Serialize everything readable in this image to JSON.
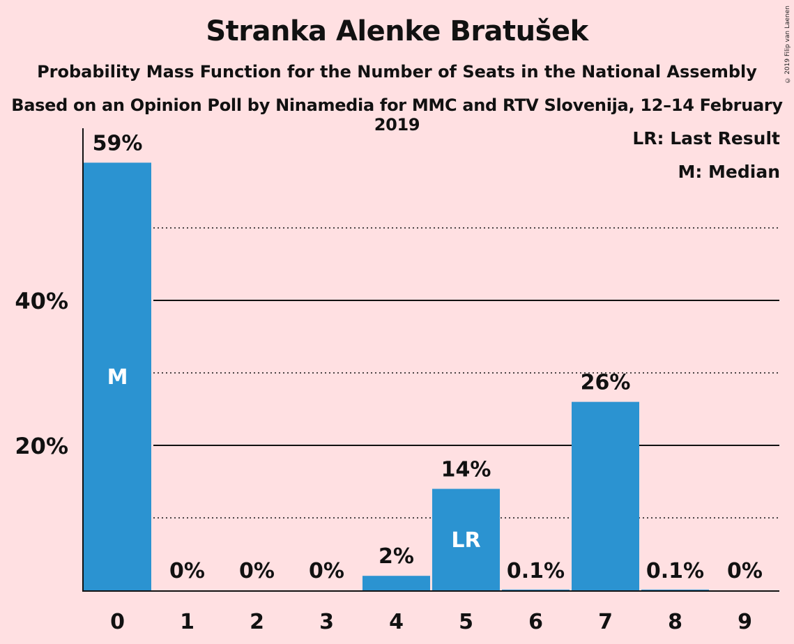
{
  "header": {
    "title": "Stranka Alenke Bratušek",
    "subtitle": "Probability Mass Function for the Number of Seats in the National Assembly",
    "subtitle2": "Based on an Opinion Poll by Ninamedia for MMC and RTV Slovenija, 12–14 February 2019",
    "copyright": "© 2019 Filip van Laenen"
  },
  "legend": {
    "last_result": "LR: Last Result",
    "median": "M: Median"
  },
  "colors": {
    "bar": "#2B93D1",
    "background": "#FFE0E2"
  },
  "chart_data": {
    "type": "bar",
    "categories": [
      "0",
      "1",
      "2",
      "3",
      "4",
      "5",
      "6",
      "7",
      "8",
      "9"
    ],
    "values": [
      59,
      0,
      0,
      0,
      2,
      14,
      0.1,
      26,
      0.1,
      0
    ],
    "labels": [
      "59%",
      "0%",
      "0%",
      "0%",
      "2%",
      "14%",
      "0.1%",
      "26%",
      "0.1%",
      "0%"
    ],
    "bar_markers": {
      "0": "M",
      "5": "LR"
    },
    "ylim": [
      0,
      64
    ],
    "yticks": [
      20,
      40
    ],
    "ytick_labels": [
      "20%",
      "40%"
    ],
    "minor_gridlines": [
      10,
      30,
      50
    ],
    "grid": true,
    "legend_position": "top-right"
  }
}
